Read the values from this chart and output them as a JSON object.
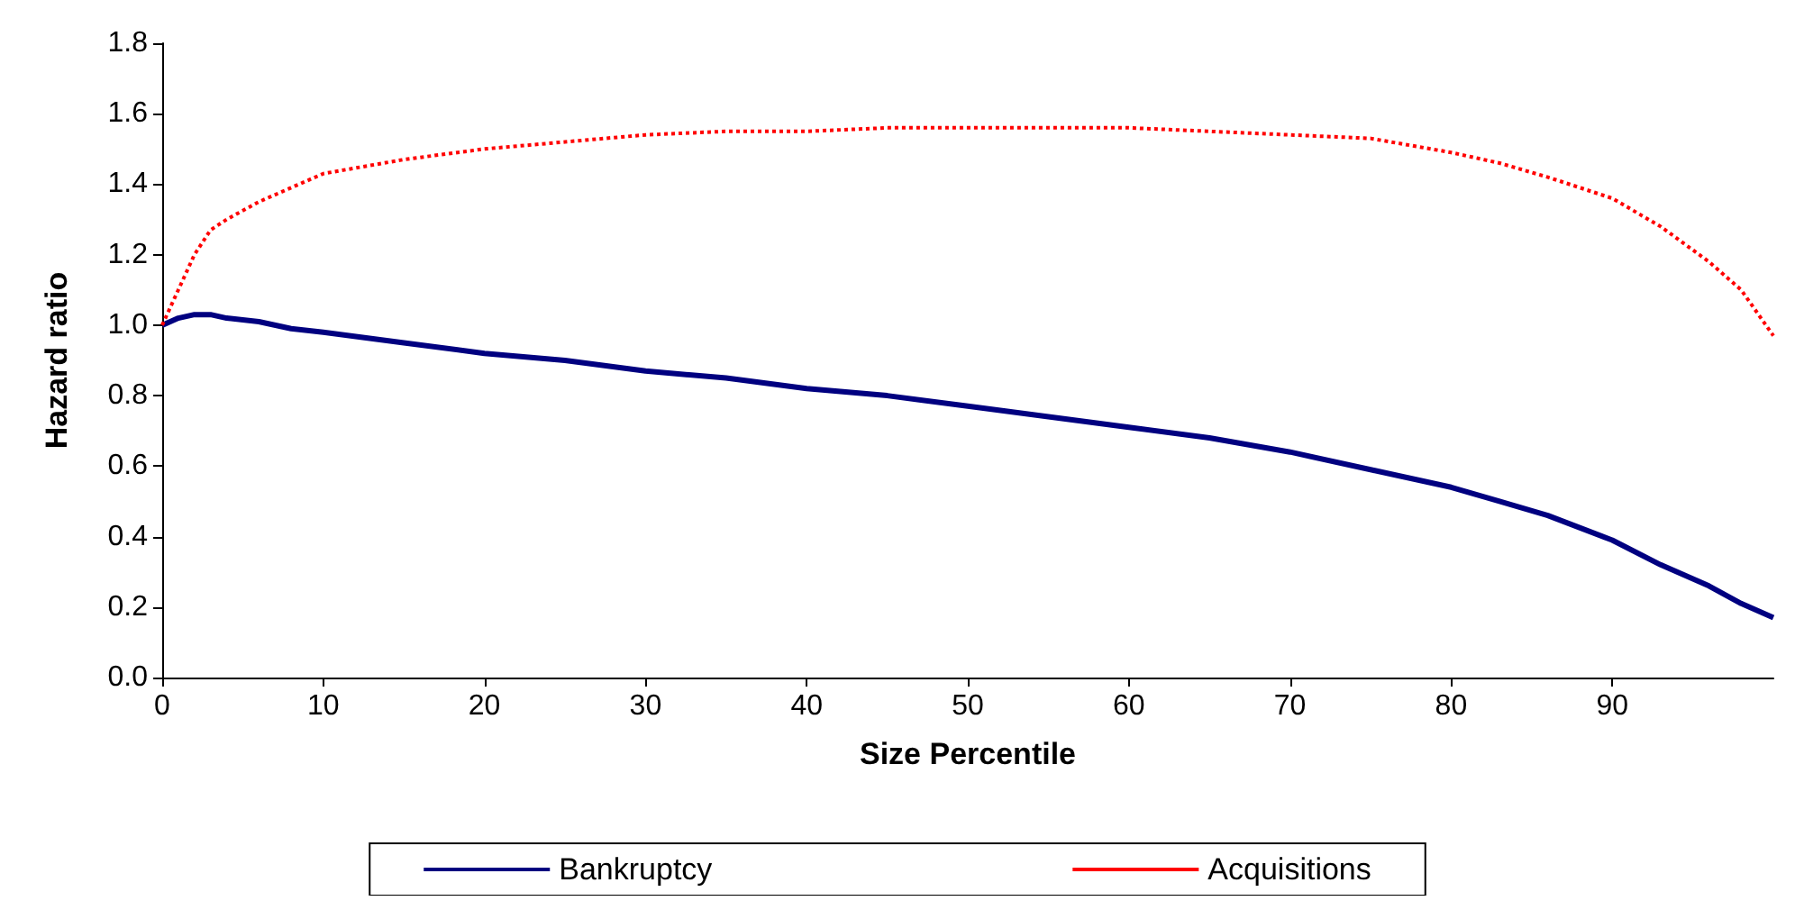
{
  "chart_data": {
    "type": "line",
    "xlabel": "Size Percentile",
    "ylabel": "Hazard ratio",
    "x": [
      0,
      1,
      2,
      3,
      4,
      6,
      8,
      10,
      15,
      20,
      25,
      30,
      35,
      40,
      45,
      50,
      55,
      60,
      65,
      70,
      75,
      80,
      83,
      86,
      90,
      93,
      96,
      98,
      100
    ],
    "series": [
      {
        "name": "Bankruptcy",
        "color": "#000080",
        "line_style": "solid",
        "values": [
          1.0,
          1.02,
          1.03,
          1.03,
          1.02,
          1.01,
          0.99,
          0.98,
          0.95,
          0.92,
          0.9,
          0.87,
          0.85,
          0.82,
          0.8,
          0.77,
          0.74,
          0.71,
          0.68,
          0.64,
          0.59,
          0.54,
          0.5,
          0.46,
          0.39,
          0.32,
          0.26,
          0.21,
          0.17
        ]
      },
      {
        "name": "Acquisitions",
        "color": "#ff0000",
        "line_style": "dotted",
        "values": [
          1.0,
          1.1,
          1.2,
          1.27,
          1.3,
          1.35,
          1.39,
          1.43,
          1.47,
          1.5,
          1.52,
          1.54,
          1.55,
          1.55,
          1.56,
          1.56,
          1.56,
          1.56,
          1.55,
          1.54,
          1.53,
          1.49,
          1.46,
          1.42,
          1.36,
          1.28,
          1.18,
          1.1,
          0.97
        ]
      }
    ],
    "xlim": [
      0,
      100
    ],
    "xticks": [
      0,
      10,
      20,
      30,
      40,
      50,
      60,
      70,
      80,
      90
    ],
    "ylim": [
      0,
      1.8
    ],
    "yticks": [
      {
        "value": 0,
        "label": "0.0"
      },
      {
        "value": 0.2,
        "label": "0.2"
      },
      {
        "value": 0.4,
        "label": "0.4"
      },
      {
        "value": 0.6,
        "label": "0.6"
      },
      {
        "value": 0.8,
        "label": "0.8"
      },
      {
        "value": 1,
        "label": "1.0"
      },
      {
        "value": 1.2,
        "label": "1.2"
      },
      {
        "value": 1.4,
        "label": "1.4"
      },
      {
        "value": 1.6,
        "label": "1.6"
      },
      {
        "value": 1.8,
        "label": "1.8"
      }
    ],
    "grid": false,
    "legend": "bottom",
    "marker": "none"
  }
}
